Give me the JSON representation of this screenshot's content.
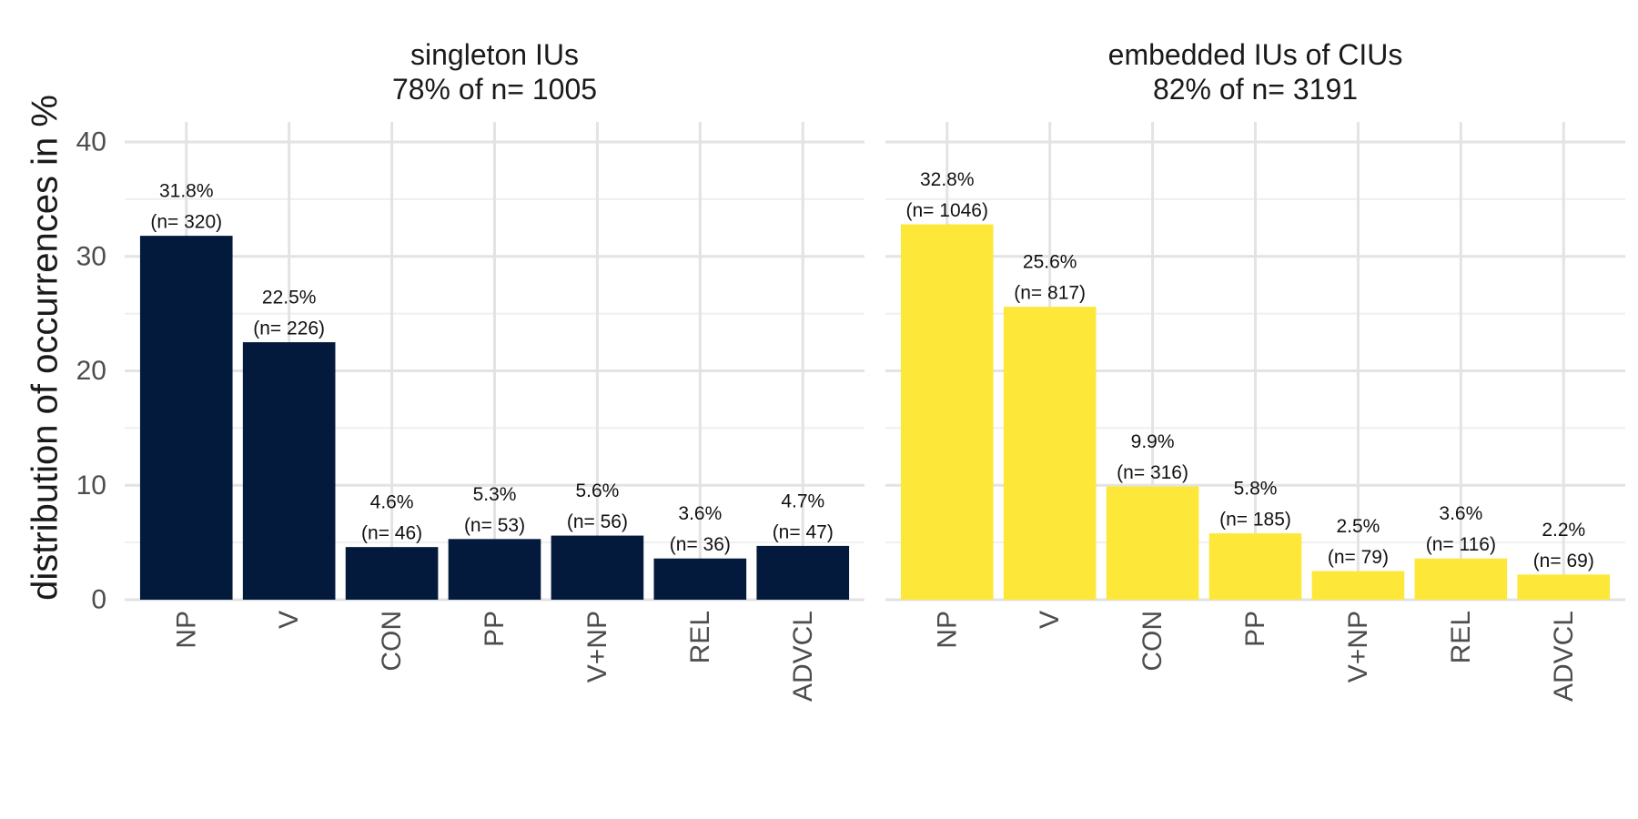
{
  "chart_data": {
    "type": "bar",
    "ylabel": "distribution of occurrences in %",
    "ylim": [
      0,
      40
    ],
    "yticks": [
      0,
      10,
      20,
      30,
      40
    ],
    "grid": true,
    "legend": "none",
    "categories": [
      "NP",
      "V",
      "CON",
      "PP",
      "V+NP",
      "REL",
      "ADVCL"
    ],
    "panels": [
      {
        "title_line1": "singleton IUs",
        "title_line2": "78% of n= 1005",
        "color": "#031A3D",
        "values": [
          31.8,
          22.5,
          4.6,
          5.3,
          5.6,
          3.6,
          4.7
        ],
        "pct_labels": [
          "31.8%",
          "22.5%",
          "4.6%",
          "5.3%",
          "5.6%",
          "3.6%",
          "4.7%"
        ],
        "n_labels": [
          "(n= 320)",
          "(n= 226)",
          "(n= 46)",
          "(n= 53)",
          "(n= 56)",
          "(n= 36)",
          "(n= 47)"
        ]
      },
      {
        "title_line1": "embedded IUs of CIUs",
        "title_line2": "82% of n= 3191",
        "color": "#FDE83A",
        "values": [
          32.8,
          25.6,
          9.9,
          5.8,
          2.5,
          3.6,
          2.2
        ],
        "pct_labels": [
          "32.8%",
          "25.6%",
          "9.9%",
          "5.8%",
          "2.5%",
          "3.6%",
          "2.2%"
        ],
        "n_labels": [
          "(n= 1046)",
          "(n= 817)",
          "(n= 316)",
          "(n= 185)",
          "(n= 79)",
          "(n= 116)",
          "(n= 69)"
        ]
      }
    ]
  }
}
